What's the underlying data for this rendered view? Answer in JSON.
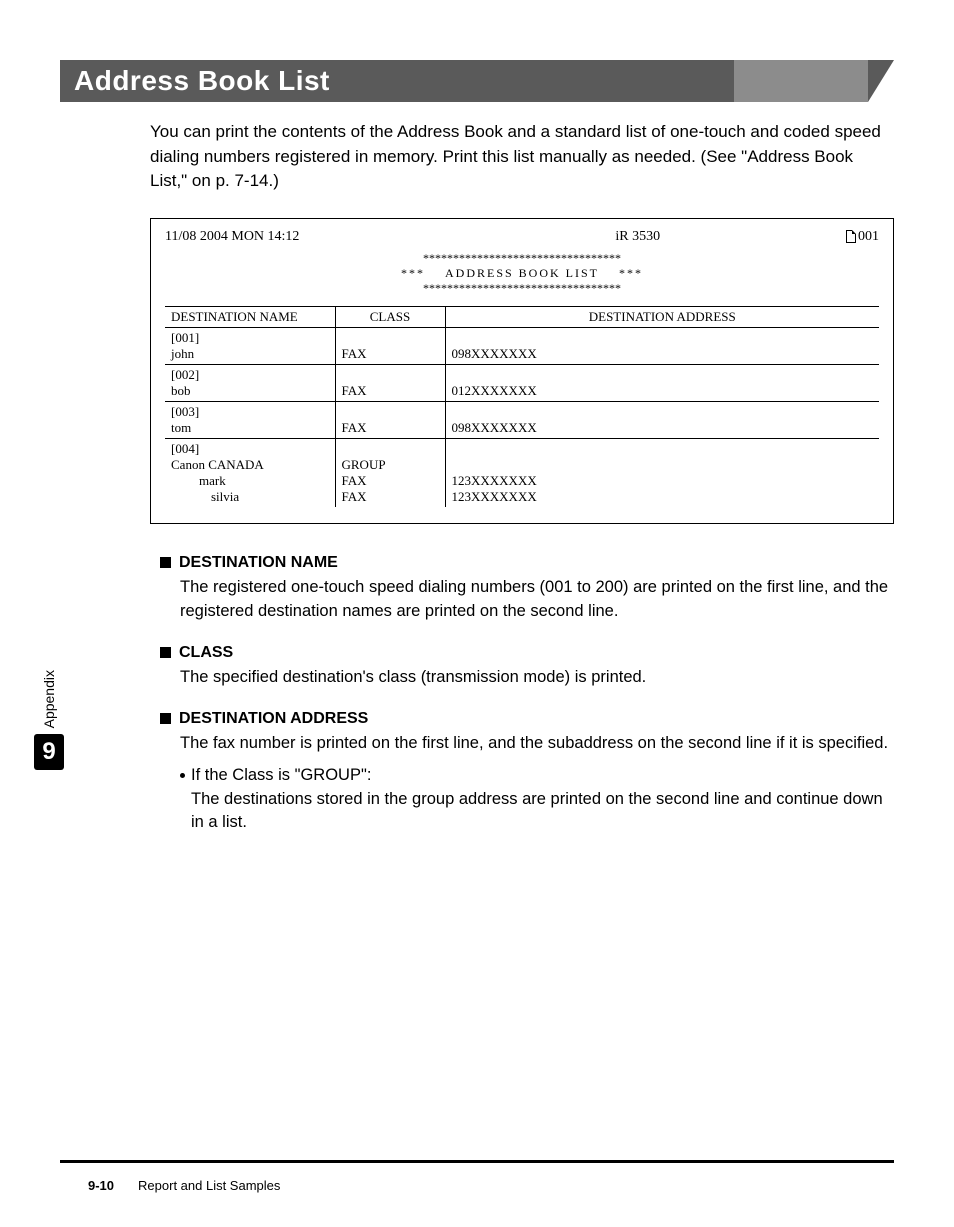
{
  "banner": {
    "title": "Address Book List"
  },
  "intro": "You can print the contents of the Address Book and a standard list of one-touch and coded speed dialing numbers registered in memory. Print this list manually as needed. (See \"Address Book List,\" on p. 7-14.)",
  "report": {
    "datetime": "11/08 2004 MON 14:12",
    "device": "iR 3530",
    "page_icon_num": "001",
    "title_stars_top": "*********************************",
    "title_mid_left": "***",
    "title_mid": "ADDRESS BOOK LIST",
    "title_mid_right": "***",
    "title_stars_bot": "*********************************",
    "headers": {
      "name": "DESTINATION NAME",
      "class": "CLASS",
      "addr": "DESTINATION ADDRESS"
    },
    "rows": [
      {
        "id": "[001]",
        "name": "john",
        "class": "FAX",
        "addr": "098XXXXXXX"
      },
      {
        "id": "[002]",
        "name": "bob",
        "class": "FAX",
        "addr": "012XXXXXXX"
      },
      {
        "id": "[003]",
        "name": "tom",
        "class": "FAX",
        "addr": "098XXXXXXX"
      }
    ],
    "group": {
      "id": "[004]",
      "name": "Canon CANADA",
      "class": "GROUP",
      "members": [
        {
          "name": "mark",
          "class": "FAX",
          "addr": "123XXXXXXX"
        },
        {
          "name": "silvia",
          "class": "FAX",
          "addr": "123XXXXXXX"
        }
      ]
    }
  },
  "sections": {
    "dest_name": {
      "title": "DESTINATION NAME",
      "body": "The registered one-touch speed dialing numbers (001 to 200) are printed on the first line, and the registered destination names are printed on the second line."
    },
    "class_s": {
      "title": "CLASS",
      "body": "The specified destination's class (transmission mode) is printed."
    },
    "dest_addr": {
      "title": "DESTINATION ADDRESS",
      "body": "The fax number is printed on the first line, and the subaddress on the second line if it is specified.",
      "bullet_lead": "If the Class is \"GROUP\":",
      "bullet_cont": "The destinations stored in the group address are printed on the second line and continue down in a list."
    }
  },
  "side": {
    "label": "Appendix",
    "num": "9"
  },
  "footer": {
    "page": "9-10",
    "title": "Report and List Samples"
  }
}
